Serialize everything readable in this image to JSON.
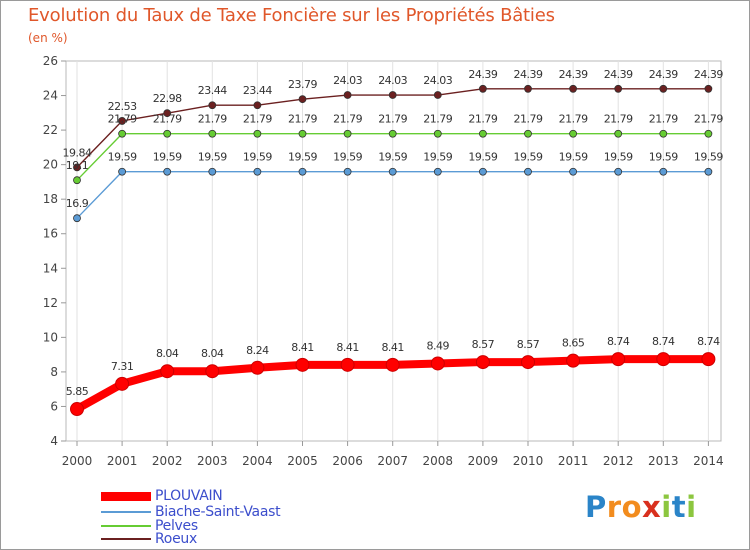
{
  "header": {
    "title": "Evolution du Taux de Taxe Foncière sur les Propriétés Bâties",
    "unit": "(en %)"
  },
  "brand": {
    "letters": [
      "P",
      "r",
      "o",
      "x",
      "i",
      "t",
      "i"
    ],
    "letter_colors": [
      "#2a84c8",
      "#f28c1e",
      "#f28c1e",
      "#d9301e",
      "#8cc63f",
      "#2a84c8",
      "#8cc63f"
    ]
  },
  "chart_data": {
    "type": "line",
    "x": [
      "2000",
      "2001",
      "2002",
      "2003",
      "2004",
      "2005",
      "2006",
      "2007",
      "2008",
      "2009",
      "2010",
      "2011",
      "2012",
      "2013",
      "2014"
    ],
    "ylim": [
      4,
      26
    ],
    "y_ticks": [
      4,
      6,
      8,
      10,
      12,
      14,
      16,
      18,
      20,
      22,
      24,
      26
    ],
    "grid": "vertical",
    "legend_position": "bottom-left",
    "series": [
      {
        "name": "PLOUVAIN",
        "color": "#ff0000",
        "values": [
          5.85,
          7.31,
          8.04,
          8.04,
          8.24,
          8.41,
          8.41,
          8.41,
          8.49,
          8.57,
          8.57,
          8.65,
          8.74,
          8.74,
          8.74
        ],
        "labels": [
          "5.85",
          "7.31",
          "8.04",
          "8.04",
          "8.24",
          "8.41",
          "8.41",
          "8.41",
          "8.49",
          "8.57",
          "8.57",
          "8.65",
          "8.74",
          "8.74",
          "8.74"
        ]
      },
      {
        "name": "Biache-Saint-Vaast",
        "color": "#5b9bd5",
        "values": [
          16.9,
          19.59,
          19.59,
          19.59,
          19.59,
          19.59,
          19.59,
          19.59,
          19.59,
          19.59,
          19.59,
          19.59,
          19.59,
          19.59,
          19.59
        ],
        "labels": [
          "16.9",
          "19.59",
          "19.59",
          "19.59",
          "19.59",
          "19.59",
          "19.59",
          "19.59",
          "19.59",
          "19.59",
          "19.59",
          "19.59",
          "19.59",
          "19.59",
          "19.59"
        ]
      },
      {
        "name": "Pelves",
        "color": "#66cc33",
        "values": [
          19.1,
          21.79,
          21.79,
          21.79,
          21.79,
          21.79,
          21.79,
          21.79,
          21.79,
          21.79,
          21.79,
          21.79,
          21.79,
          21.79,
          21.79
        ],
        "labels": [
          "19.1",
          "21.79",
          "21.79",
          "21.79",
          "21.79",
          "21.79",
          "21.79",
          "21.79",
          "21.79",
          "21.79",
          "21.79",
          "21.79",
          "21.79",
          "21.79",
          "21.79"
        ]
      },
      {
        "name": "Roeux",
        "color": "#6b2020",
        "values": [
          19.84,
          22.53,
          22.98,
          23.44,
          23.44,
          23.79,
          24.03,
          24.03,
          24.03,
          24.39,
          24.39,
          24.39,
          24.39,
          24.39,
          24.39
        ],
        "labels": [
          "19.84",
          "22.53",
          "22.98",
          "23.44",
          "23.44",
          "23.79",
          "24.03",
          "24.03",
          "24.03",
          "24.39",
          "24.39",
          "24.39",
          "24.39",
          "24.39",
          "24.39"
        ]
      }
    ]
  }
}
